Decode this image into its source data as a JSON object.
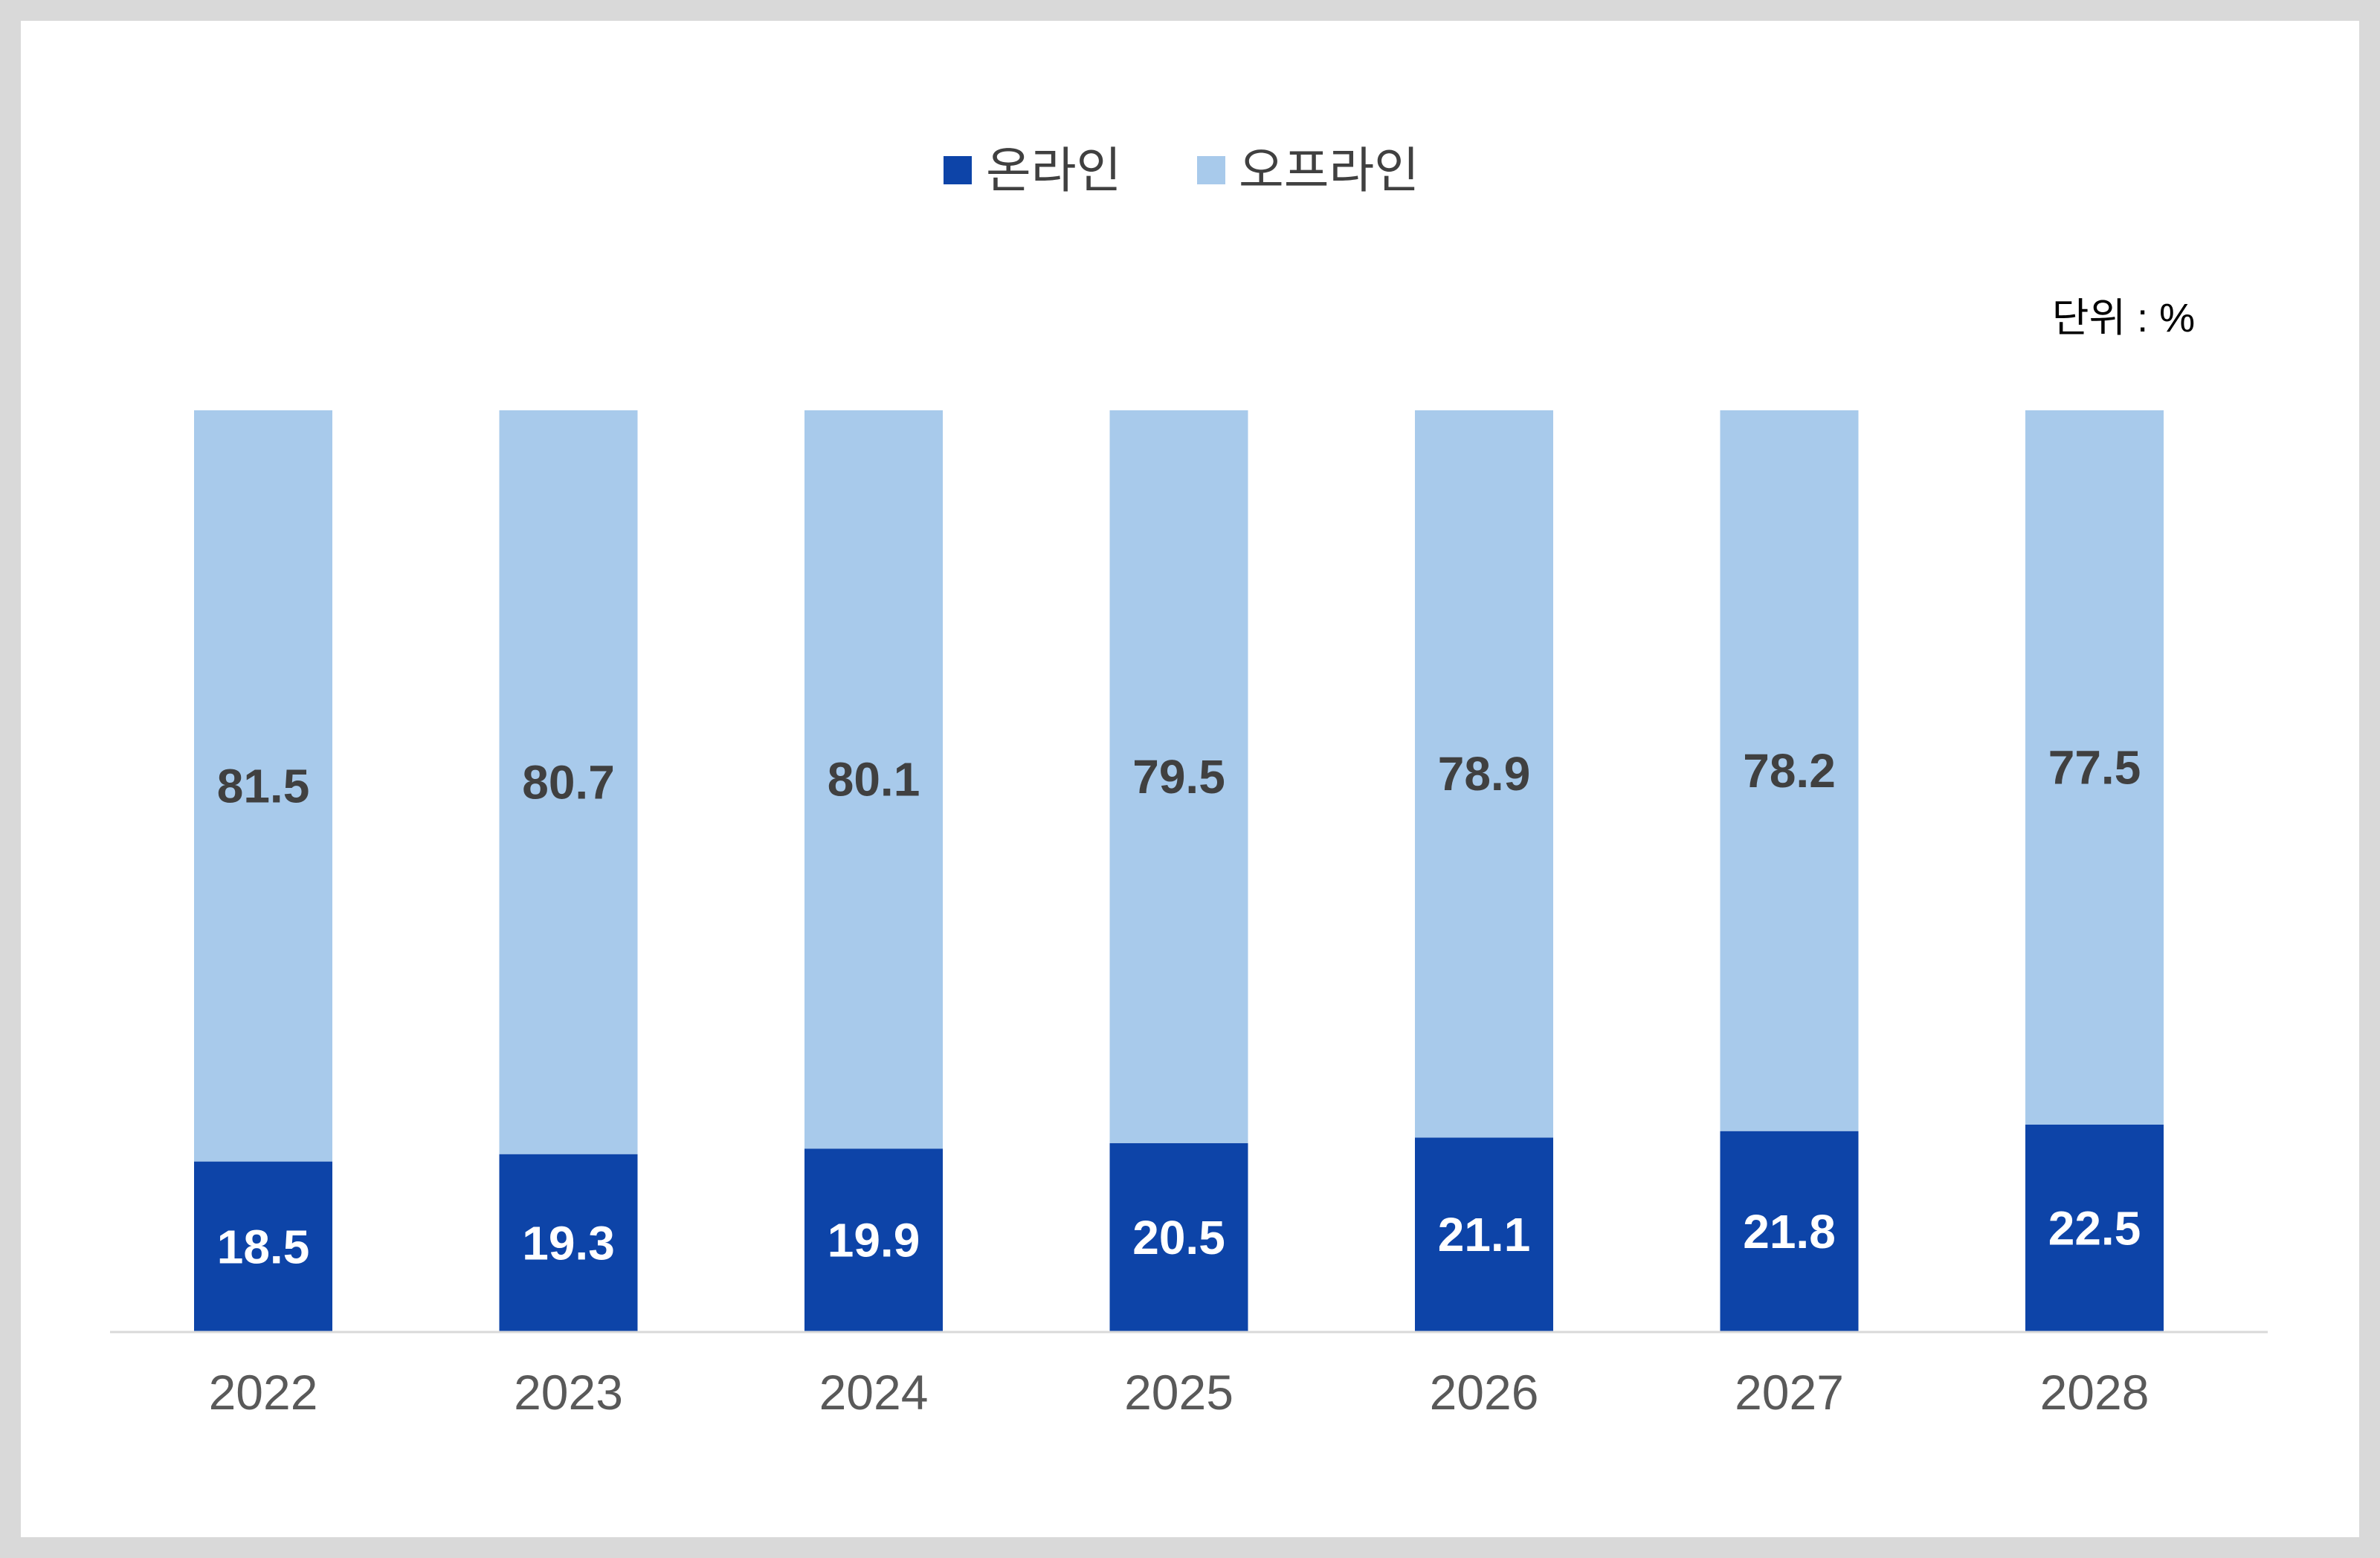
{
  "chart_data": {
    "type": "bar",
    "stacked": true,
    "normalized_percent": true,
    "unit_label": "단위 : %",
    "legend_position": "top-center",
    "grid": false,
    "ylim": [
      0,
      100
    ],
    "categories": [
      "2022",
      "2023",
      "2024",
      "2025",
      "2026",
      "2027",
      "2028"
    ],
    "series": [
      {
        "name": "온라인",
        "color": "#0d44a8",
        "values": [
          18.5,
          19.3,
          19.9,
          20.5,
          21.1,
          21.8,
          22.5
        ],
        "labels": [
          "18.5",
          "19.3",
          "19.9",
          "20.5",
          "21.1",
          "21.8",
          "22.5"
        ]
      },
      {
        "name": "오프라인",
        "color": "#a8caeb",
        "values": [
          81.5,
          80.7,
          80.1,
          79.5,
          78.9,
          78.2,
          77.5
        ],
        "labels": [
          "81.5",
          "80.7",
          "80.1",
          "79.5",
          "78.9",
          "78.2",
          "77.5"
        ]
      }
    ]
  }
}
